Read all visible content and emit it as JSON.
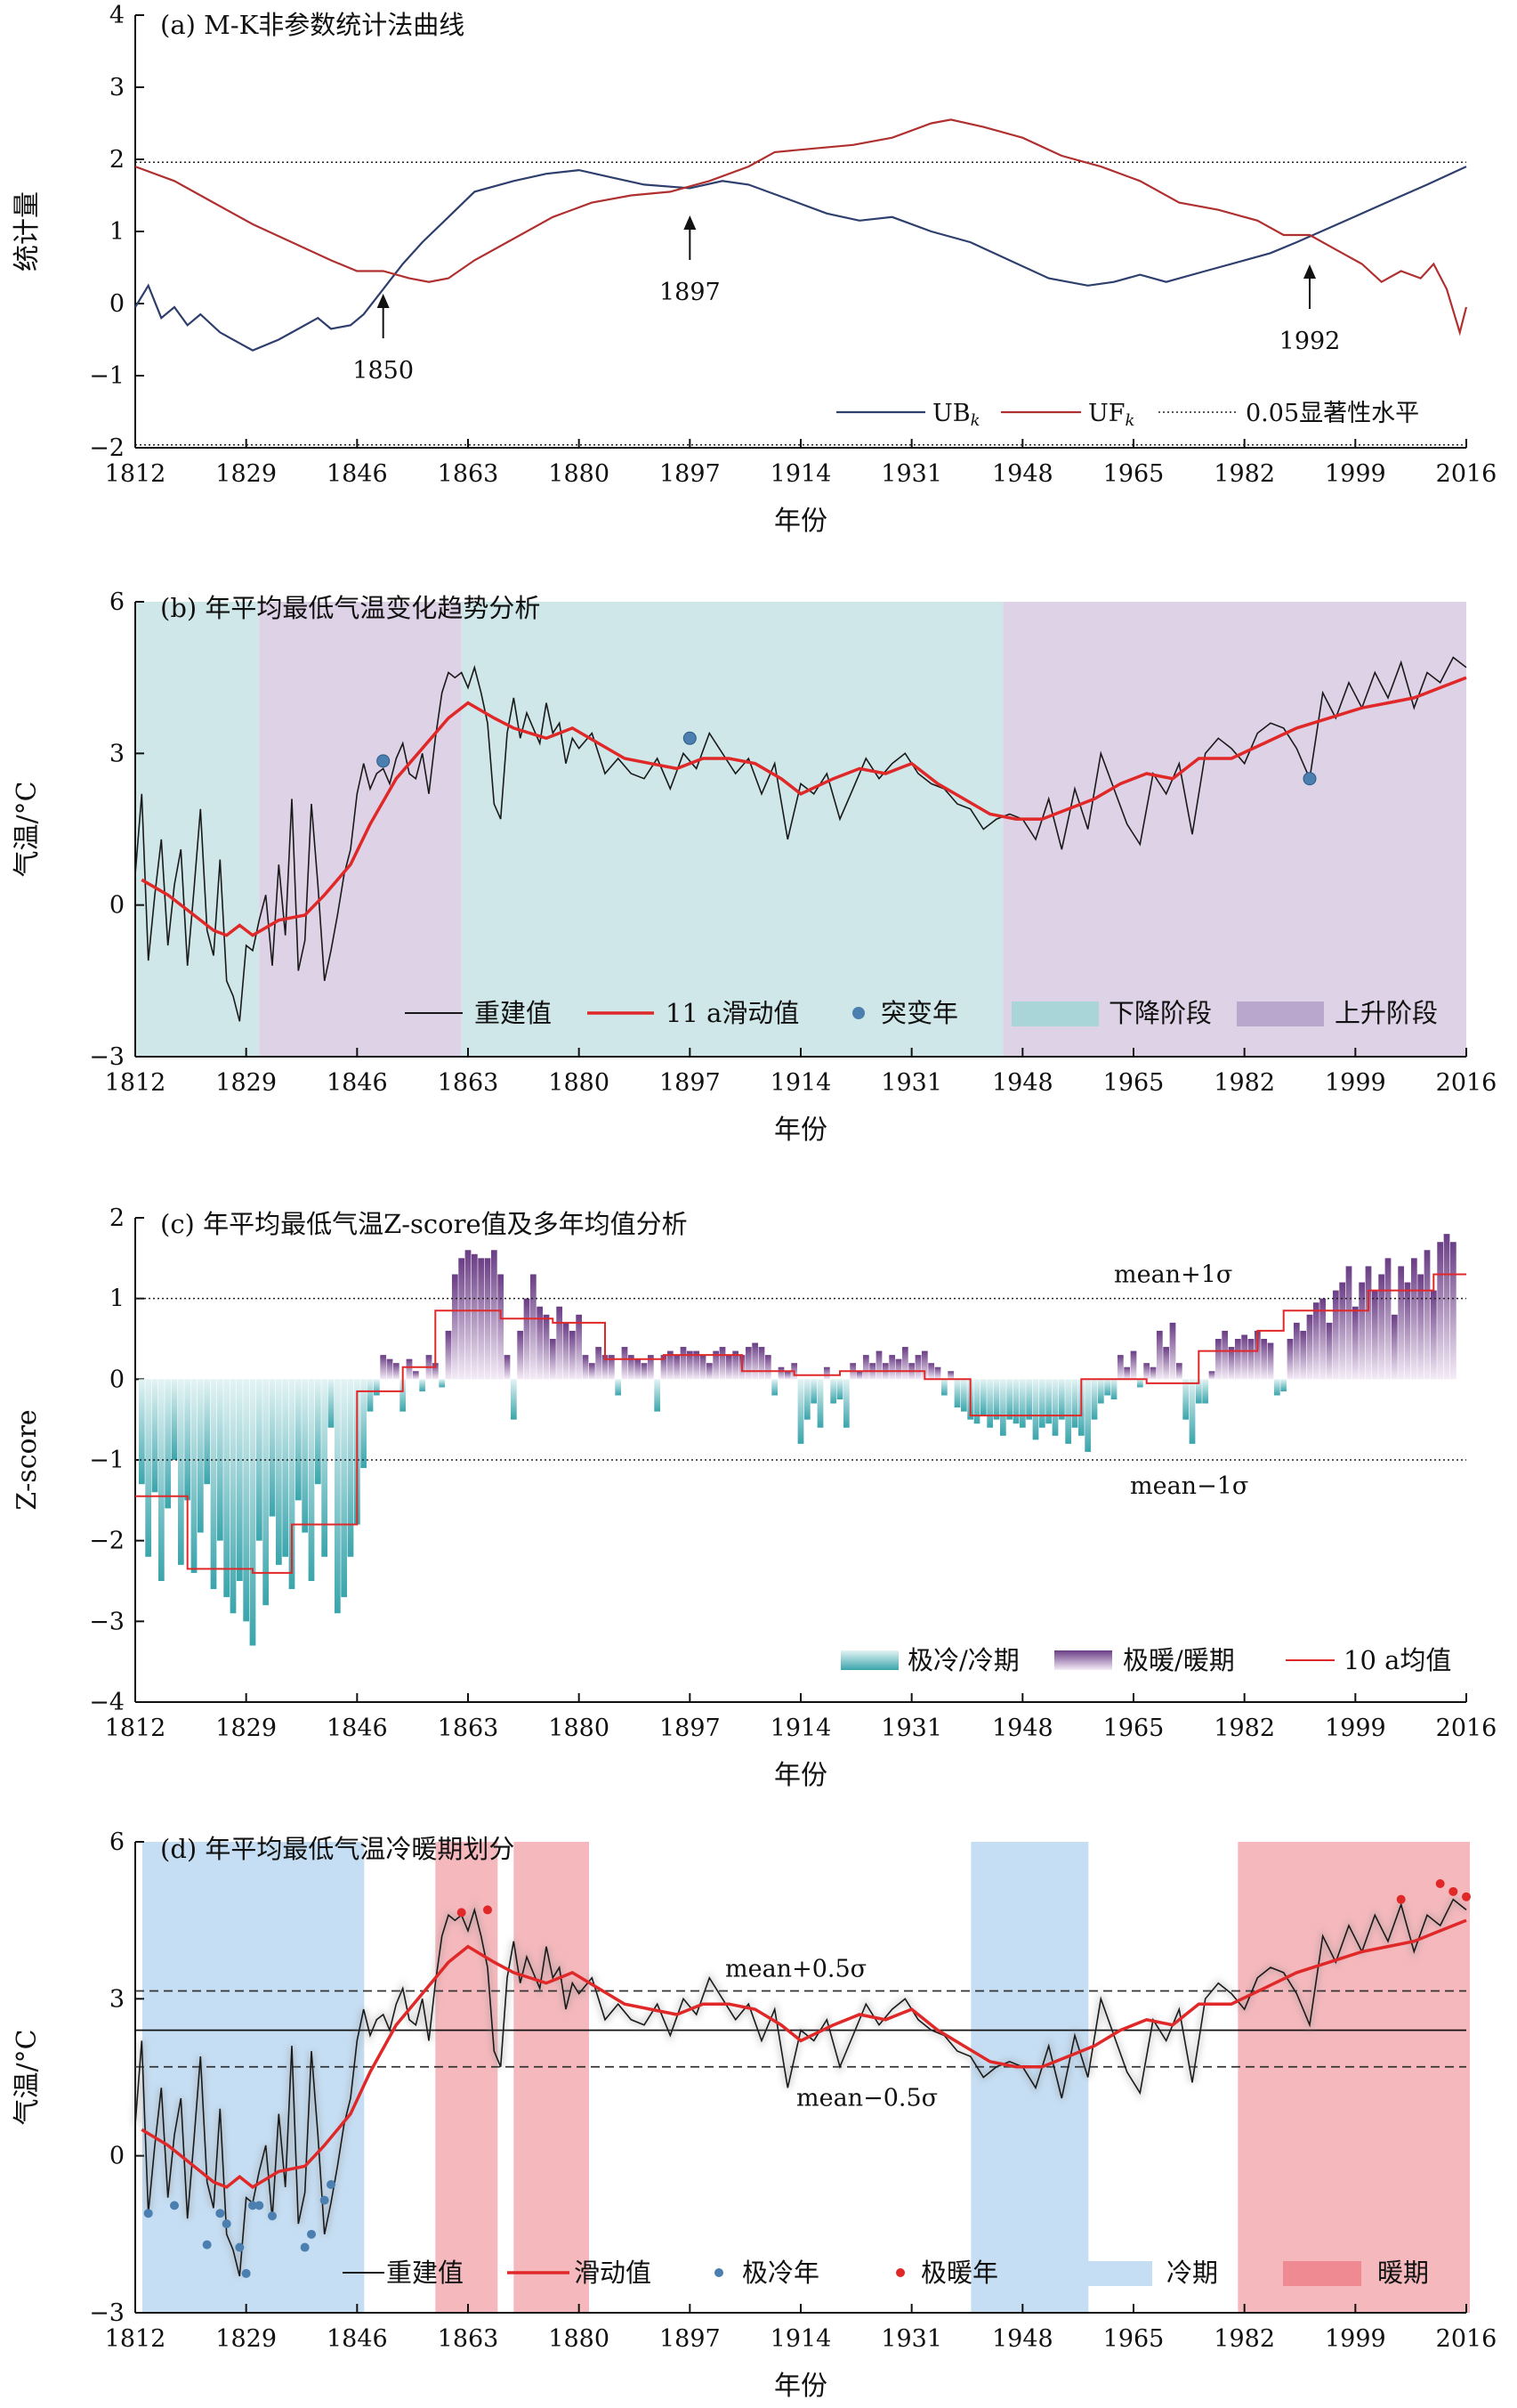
{
  "figure": {
    "xlabel": "年份",
    "x_ticks": [
      1812,
      1829,
      1846,
      1863,
      1880,
      1897,
      1914,
      1931,
      1948,
      1965,
      1982,
      1999,
      2016
    ]
  },
  "colors": {
    "ub": "#2e3f6e",
    "uf": "#b03030",
    "smooth": "#e02828",
    "recon": "#1a1a1a",
    "mark_blue": "#4a7fb0",
    "down_fill": "#cfe7e8",
    "up_fill": "#ddd2e6",
    "cold_period": "#c6def3",
    "warm_period": "#f5b9bd",
    "cold_bar": "#3aa5ac",
    "warm_bar": "#6a3d85"
  },
  "chart_data": [
    {
      "type": "line",
      "title": "(a) M-K非参数统计法曲线",
      "xlabel": "年份",
      "ylabel": "统计量",
      "xlim": [
        1812,
        2016
      ],
      "ylim": [
        -2,
        4
      ],
      "y_ticks": [
        4,
        3,
        2,
        1,
        0,
        -1,
        -2
      ],
      "sig_lines": [
        1.96,
        -1.96
      ],
      "annotations": [
        {
          "year": 1850,
          "text": "1850"
        },
        {
          "year": 1897,
          "text": "1897"
        },
        {
          "year": 1992,
          "text": "1992"
        }
      ],
      "legend": [
        "UB",
        "UF",
        "0.05显著性水平"
      ],
      "legend_subscript": "k",
      "series": [
        {
          "name": "UB",
          "x": [
            1812,
            1814,
            1816,
            1818,
            1820,
            1822,
            1825,
            1828,
            1830,
            1834,
            1837,
            1840,
            1842,
            1845,
            1847,
            1850,
            1853,
            1856,
            1860,
            1864,
            1870,
            1875,
            1880,
            1885,
            1890,
            1897,
            1902,
            1906,
            1912,
            1918,
            1923,
            1928,
            1934,
            1940,
            1946,
            1952,
            1958,
            1962,
            1966,
            1970,
            1976,
            1982,
            1986,
            1990,
            1995,
            2000,
            2005,
            2010,
            2016
          ],
          "y": [
            -0.05,
            0.25,
            -0.2,
            -0.05,
            -0.3,
            -0.15,
            -0.4,
            -0.55,
            -0.65,
            -0.5,
            -0.35,
            -0.2,
            -0.35,
            -0.3,
            -0.15,
            0.2,
            0.55,
            0.85,
            1.2,
            1.55,
            1.7,
            1.8,
            1.85,
            1.75,
            1.65,
            1.6,
            1.7,
            1.65,
            1.45,
            1.25,
            1.15,
            1.2,
            1.0,
            0.85,
            0.6,
            0.35,
            0.25,
            0.3,
            0.4,
            0.3,
            0.45,
            0.6,
            0.7,
            0.85,
            1.05,
            1.25,
            1.45,
            1.65,
            1.9
          ]
        },
        {
          "name": "UF",
          "x": [
            1812,
            1818,
            1824,
            1830,
            1836,
            1842,
            1846,
            1850,
            1854,
            1857,
            1860,
            1864,
            1870,
            1876,
            1882,
            1888,
            1894,
            1900,
            1906,
            1910,
            1916,
            1922,
            1928,
            1934,
            1937,
            1942,
            1948,
            1954,
            1960,
            1966,
            1972,
            1978,
            1984,
            1988,
            1992,
            1996,
            2000,
            2003,
            2006,
            2009,
            2011,
            2013,
            2015,
            2016
          ],
          "y": [
            1.9,
            1.7,
            1.4,
            1.1,
            0.85,
            0.6,
            0.45,
            0.45,
            0.35,
            0.3,
            0.35,
            0.6,
            0.9,
            1.2,
            1.4,
            1.5,
            1.55,
            1.7,
            1.9,
            2.1,
            2.15,
            2.2,
            2.3,
            2.5,
            2.55,
            2.45,
            2.3,
            2.05,
            1.9,
            1.7,
            1.4,
            1.3,
            1.15,
            0.95,
            0.95,
            0.75,
            0.55,
            0.3,
            0.45,
            0.35,
            0.55,
            0.2,
            -0.4,
            -0.05
          ]
        }
      ]
    },
    {
      "type": "line",
      "title": "(b) 年平均最低气温变化趋势分析",
      "xlabel": "年份",
      "ylabel": "气温/°C",
      "xlim": [
        1812,
        2016
      ],
      "ylim": [
        -3,
        6
      ],
      "y_ticks": [
        6,
        3,
        0,
        -3
      ],
      "bands": [
        {
          "from": 1812,
          "to": 1831,
          "kind": "down"
        },
        {
          "from": 1831,
          "to": 1862,
          "kind": "up"
        },
        {
          "from": 1862,
          "to": 1945,
          "kind": "down"
        },
        {
          "from": 1945,
          "to": 2016,
          "kind": "up"
        }
      ],
      "mutation_points": [
        {
          "x": 1850,
          "y": 2.85
        },
        {
          "x": 1897,
          "y": 3.3
        },
        {
          "x": 1992,
          "y": 2.5
        }
      ],
      "legend": [
        "重建值",
        "11 a滑动值",
        "突变年",
        "下降阶段",
        "上升阶段"
      ],
      "smooth": {
        "x": [
          1813,
          1817,
          1820,
          1824,
          1826,
          1828,
          1830,
          1834,
          1838,
          1841,
          1845,
          1848,
          1852,
          1856,
          1860,
          1863,
          1867,
          1870,
          1875,
          1879,
          1883,
          1887,
          1891,
          1895,
          1899,
          1903,
          1907,
          1911,
          1914,
          1919,
          1923,
          1927,
          1931,
          1935,
          1939,
          1943,
          1947,
          1951,
          1955,
          1959,
          1963,
          1967,
          1971,
          1975,
          1980,
          1985,
          1990,
          1995,
          2000,
          2004,
          2008,
          2012,
          2016
        ],
        "y": [
          0.5,
          0.2,
          -0.1,
          -0.5,
          -0.6,
          -0.4,
          -0.6,
          -0.3,
          -0.2,
          0.2,
          0.8,
          1.6,
          2.5,
          3.1,
          3.7,
          4.0,
          3.7,
          3.5,
          3.3,
          3.5,
          3.2,
          2.9,
          2.8,
          2.7,
          2.9,
          2.9,
          2.8,
          2.5,
          2.2,
          2.5,
          2.7,
          2.6,
          2.8,
          2.4,
          2.1,
          1.8,
          1.7,
          1.7,
          1.9,
          2.1,
          2.4,
          2.6,
          2.5,
          2.9,
          2.9,
          3.2,
          3.5,
          3.7,
          3.9,
          4.0,
          4.1,
          4.3,
          4.5
        ]
      },
      "recon": {
        "x": [
          1812,
          1813,
          1814,
          1815,
          1816,
          1817,
          1818,
          1819,
          1820,
          1821,
          1822,
          1823,
          1824,
          1825,
          1826,
          1827,
          1828,
          1829,
          1830,
          1831,
          1832,
          1833,
          1834,
          1835,
          1836,
          1837,
          1838,
          1839,
          1840,
          1841,
          1842,
          1843,
          1844,
          1845,
          1846,
          1847,
          1848,
          1849,
          1850,
          1851,
          1852,
          1853,
          1854,
          1855,
          1856,
          1857,
          1858,
          1859,
          1860,
          1861,
          1862,
          1863,
          1864,
          1865,
          1866,
          1867,
          1868,
          1869,
          1870,
          1871,
          1872,
          1873,
          1874,
          1875,
          1876,
          1877,
          1878,
          1879,
          1880,
          1882,
          1884,
          1886,
          1888,
          1890,
          1892,
          1894,
          1896,
          1898,
          1900,
          1902,
          1904,
          1906,
          1908,
          1910,
          1912,
          1914,
          1916,
          1918,
          1920,
          1922,
          1924,
          1926,
          1928,
          1930,
          1932,
          1934,
          1936,
          1938,
          1940,
          1942,
          1944,
          1946,
          1948,
          1950,
          1952,
          1954,
          1956,
          1958,
          1960,
          1962,
          1964,
          1966,
          1968,
          1970,
          1972,
          1974,
          1976,
          1978,
          1980,
          1982,
          1984,
          1986,
          1988,
          1990,
          1992,
          1994,
          1996,
          1998,
          2000,
          2002,
          2004,
          2006,
          2008,
          2010,
          2012,
          2014,
          2016
        ],
        "y": [
          0.6,
          2.2,
          -1.1,
          0.2,
          1.3,
          -0.8,
          0.4,
          1.1,
          -1.2,
          0.3,
          1.9,
          -0.5,
          -1.0,
          0.9,
          -1.5,
          -1.8,
          -2.3,
          -0.8,
          -0.9,
          -0.3,
          0.2,
          -1.2,
          0.8,
          -0.6,
          2.1,
          -1.3,
          -0.7,
          2.0,
          0.4,
          -1.5,
          -0.9,
          -0.2,
          0.6,
          1.1,
          2.2,
          2.8,
          2.3,
          2.6,
          2.7,
          2.4,
          2.9,
          3.2,
          2.6,
          2.5,
          3.0,
          2.2,
          3.3,
          4.2,
          4.6,
          4.5,
          4.6,
          4.3,
          4.7,
          4.2,
          3.6,
          2.0,
          1.7,
          3.4,
          4.1,
          3.3,
          3.8,
          3.5,
          3.2,
          4.0,
          3.4,
          3.6,
          2.8,
          3.3,
          3.1,
          3.4,
          2.6,
          2.9,
          2.6,
          2.5,
          2.9,
          2.3,
          3.0,
          2.7,
          3.4,
          3.0,
          2.6,
          2.9,
          2.2,
          2.8,
          1.3,
          2.4,
          2.2,
          2.6,
          1.7,
          2.3,
          2.9,
          2.5,
          2.8,
          3.0,
          2.6,
          2.4,
          2.3,
          2.0,
          1.9,
          1.5,
          1.7,
          1.8,
          1.7,
          1.3,
          2.1,
          1.1,
          2.3,
          1.5,
          3.0,
          2.3,
          1.6,
          1.2,
          2.6,
          2.2,
          2.8,
          1.4,
          3.0,
          3.3,
          3.1,
          2.8,
          3.4,
          3.6,
          3.5,
          3.1,
          2.5,
          4.2,
          3.7,
          4.4,
          3.9,
          4.6,
          4.1,
          4.8,
          3.9,
          4.6,
          4.4,
          4.9,
          4.7
        ]
      }
    },
    {
      "type": "bar",
      "title": "(c) 年平均最低气温Z-score值及多年均值分析",
      "xlabel": "年份",
      "ylabel": "Z-score",
      "xlim": [
        1812,
        2016
      ],
      "ylim": [
        -4,
        2
      ],
      "y_ticks": [
        2,
        1,
        0,
        -1,
        -2,
        -3,
        -4
      ],
      "ref_lines": [
        {
          "y": 1,
          "label": "mean+1σ"
        },
        {
          "y": -1,
          "label": "mean−1σ"
        }
      ],
      "legend": [
        "极冷/冷期",
        "极暖/暖期",
        "10 a均值"
      ],
      "mean10": {
        "x": [
          1812,
          1820,
          1820,
          1830,
          1830,
          1836,
          1836,
          1846,
          1846,
          1853,
          1853,
          1858,
          1858,
          1868,
          1868,
          1876,
          1876,
          1884,
          1884,
          1893,
          1893,
          1905,
          1905,
          1913,
          1913,
          1920,
          1920,
          1933,
          1933,
          1940,
          1940,
          1950,
          1950,
          1957,
          1957,
          1967,
          1967,
          1975,
          1975,
          1984,
          1984,
          1988,
          1988,
          2001,
          2001,
          2011,
          2011,
          2016
        ],
        "y": [
          -1.45,
          -1.45,
          -2.35,
          -2.35,
          -2.4,
          -2.4,
          -1.8,
          -1.8,
          -0.15,
          -0.15,
          0.15,
          0.15,
          0.85,
          0.85,
          0.75,
          0.75,
          0.7,
          0.7,
          0.25,
          0.25,
          0.3,
          0.3,
          0.1,
          0.1,
          0.05,
          0.05,
          0.1,
          0.1,
          0.0,
          0.0,
          -0.45,
          -0.45,
          -0.45,
          -0.45,
          0.0,
          0.0,
          -0.05,
          -0.05,
          0.35,
          0.35,
          0.6,
          0.6,
          0.85,
          0.85,
          1.1,
          1.1,
          1.3,
          1.3
        ]
      },
      "bars": {
        "start_year": 1812,
        "values": [
          -1.3,
          -2.2,
          -1.4,
          -2.5,
          -1.6,
          -1.0,
          -2.3,
          -1.5,
          -2.4,
          -1.9,
          -1.3,
          -2.6,
          -2.0,
          -2.7,
          -2.9,
          -2.5,
          -3.0,
          -3.3,
          -2.0,
          -2.8,
          -1.7,
          -2.3,
          -2.2,
          -2.6,
          -1.5,
          -1.9,
          -2.5,
          -1.3,
          -2.2,
          -0.6,
          -2.9,
          -2.7,
          -2.2,
          -1.8,
          -1.1,
          -0.4,
          -0.2,
          0.3,
          0.25,
          0.2,
          -0.4,
          0.25,
          0.1,
          -0.15,
          0.3,
          0.2,
          -0.1,
          0.6,
          1.3,
          1.5,
          1.6,
          1.55,
          1.5,
          1.5,
          1.6,
          1.3,
          0.3,
          -0.5,
          0.6,
          1.0,
          1.3,
          0.9,
          0.8,
          0.5,
          0.9,
          0.7,
          0.6,
          0.8,
          0.3,
          0.2,
          0.4,
          0.3,
          0.3,
          -0.2,
          0.4,
          0.3,
          0.25,
          0.2,
          0.3,
          -0.4,
          0.3,
          0.35,
          0.3,
          0.4,
          0.35,
          0.35,
          0.3,
          0.2,
          0.35,
          0.4,
          0.3,
          0.35,
          0.3,
          0.4,
          0.45,
          0.4,
          0.3,
          -0.2,
          0.15,
          0.1,
          0.2,
          -0.8,
          -0.5,
          -0.3,
          -0.6,
          0.15,
          -0.3,
          -0.25,
          -0.6,
          0.2,
          0.1,
          0.3,
          0.2,
          0.35,
          0.2,
          0.3,
          0.25,
          0.4,
          0.2,
          0.3,
          0.35,
          0.2,
          0.15,
          -0.2,
          0.1,
          -0.35,
          -0.4,
          -0.5,
          -0.55,
          -0.45,
          -0.6,
          -0.5,
          -0.7,
          -0.5,
          -0.55,
          -0.6,
          -0.5,
          -0.75,
          -0.6,
          -0.55,
          -0.7,
          -0.5,
          -0.8,
          -0.6,
          -0.7,
          -0.9,
          -0.5,
          -0.3,
          -0.2,
          -0.25,
          0.3,
          0.15,
          0.35,
          -0.1,
          0.2,
          0.15,
          0.6,
          0.4,
          0.7,
          0.2,
          -0.5,
          -0.8,
          -0.3,
          -0.3,
          0.1,
          0.5,
          0.6,
          0.4,
          0.5,
          0.55,
          0.5,
          0.6,
          0.5,
          0.45,
          -0.2,
          -0.15,
          0.5,
          0.7,
          0.6,
          0.8,
          0.95,
          1.0,
          0.7,
          1.1,
          1.2,
          1.4,
          0.9,
          1.2,
          1.4,
          1.1,
          1.3,
          1.5,
          0.8,
          1.4,
          1.2,
          1.5,
          1.3,
          1.6,
          1.1,
          1.7,
          1.8,
          1.7
        ]
      }
    },
    {
      "type": "line",
      "title": "(d) 年平均最低气温冷暖期划分",
      "xlabel": "年份",
      "ylabel": "气温/°C",
      "xlim": [
        1812,
        2016
      ],
      "ylim": [
        -3,
        6
      ],
      "y_ticks": [
        6,
        3,
        0,
        -3
      ],
      "mean": 2.4,
      "upper": 3.15,
      "lower": 1.7,
      "upper_label": "mean+0.5σ",
      "lower_label": "mean−0.5σ",
      "cold_periods": [
        [
          1812,
          1846
        ],
        [
          1939,
          1957
        ]
      ],
      "warm_periods": [
        [
          1858,
          1867
        ],
        [
          1870,
          1881
        ],
        [
          1981,
          2016
        ]
      ],
      "extreme_cold": [
        {
          "x": 1814,
          "y": -1.1
        },
        {
          "x": 1818,
          "y": -0.95
        },
        {
          "x": 1823,
          "y": -1.7
        },
        {
          "x": 1825,
          "y": -1.1
        },
        {
          "x": 1826,
          "y": -1.3
        },
        {
          "x": 1828,
          "y": -1.75
        },
        {
          "x": 1829,
          "y": -2.25
        },
        {
          "x": 1830,
          "y": -0.95
        },
        {
          "x": 1831,
          "y": -0.95
        },
        {
          "x": 1833,
          "y": -1.15
        },
        {
          "x": 1838,
          "y": -1.75
        },
        {
          "x": 1839,
          "y": -1.5
        },
        {
          "x": 1841,
          "y": -0.85
        },
        {
          "x": 1842,
          "y": -0.55
        }
      ],
      "extreme_warm": [
        {
          "x": 1862,
          "y": 4.65
        },
        {
          "x": 1866,
          "y": 4.7
        },
        {
          "x": 2006,
          "y": 4.9
        },
        {
          "x": 2012,
          "y": 5.2
        },
        {
          "x": 2014,
          "y": 5.05
        },
        {
          "x": 2016,
          "y": 4.95
        }
      ],
      "legend": [
        "重建值",
        "滑动值",
        "极冷年",
        "极暖年",
        "冷期",
        "暖期"
      ]
    }
  ]
}
